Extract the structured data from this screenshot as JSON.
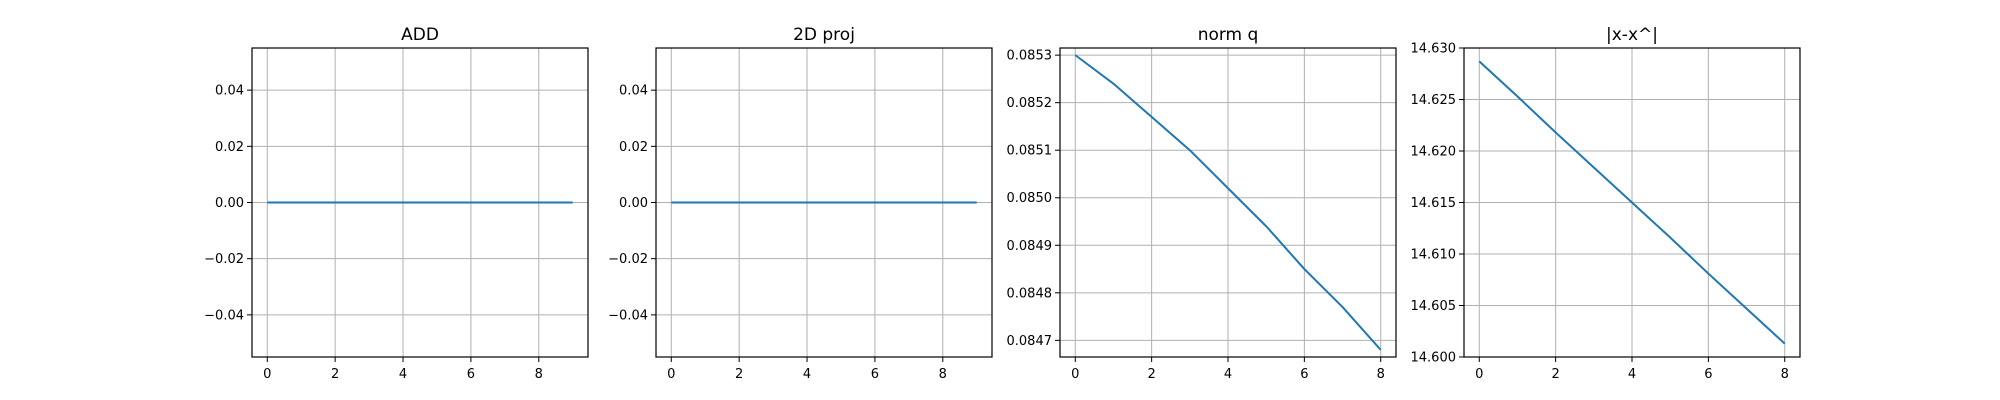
{
  "colors": {
    "series": "#1f77b4",
    "grid": "#b0b0b0",
    "axis": "#000000"
  },
  "chart_data": [
    {
      "type": "line",
      "title": "ADD",
      "xlabel": "",
      "ylabel": "",
      "x": [
        0,
        1,
        2,
        3,
        4,
        5,
        6,
        7,
        8,
        9
      ],
      "series": [
        {
          "values": [
            0,
            0,
            0,
            0,
            0,
            0,
            0,
            0,
            0,
            0
          ]
        }
      ],
      "xlim": [
        -0.45,
        9.45
      ],
      "ylim": [
        -0.055,
        0.055
      ],
      "xticks": [
        0,
        2,
        4,
        6,
        8
      ],
      "xtick_labels": [
        "0",
        "2",
        "4",
        "6",
        "8"
      ],
      "yticks": [
        0.04,
        0.02,
        0.0,
        -0.02,
        -0.04
      ],
      "ytick_labels": [
        "0.04",
        "0.02",
        "0.00",
        "−0.02",
        "−0.04"
      ],
      "grid": true
    },
    {
      "type": "line",
      "title": "2D proj",
      "xlabel": "",
      "ylabel": "",
      "x": [
        0,
        1,
        2,
        3,
        4,
        5,
        6,
        7,
        8,
        9
      ],
      "series": [
        {
          "values": [
            0,
            0,
            0,
            0,
            0,
            0,
            0,
            0,
            0,
            0
          ]
        }
      ],
      "xlim": [
        -0.45,
        9.45
      ],
      "ylim": [
        -0.055,
        0.055
      ],
      "xticks": [
        0,
        2,
        4,
        6,
        8
      ],
      "xtick_labels": [
        "0",
        "2",
        "4",
        "6",
        "8"
      ],
      "yticks": [
        0.04,
        0.02,
        0.0,
        -0.02,
        -0.04
      ],
      "ytick_labels": [
        "0.04",
        "0.02",
        "0.00",
        "−0.02",
        "−0.04"
      ],
      "grid": true
    },
    {
      "type": "line",
      "title": "norm q",
      "xlabel": "",
      "ylabel": "",
      "x": [
        0,
        1,
        2,
        3,
        4,
        5,
        6,
        7,
        8
      ],
      "series": [
        {
          "values": [
            0.0853,
            0.08524,
            0.08517,
            0.0851,
            0.08502,
            0.08494,
            0.08485,
            0.08477,
            0.08468
          ]
        }
      ],
      "xlim": [
        -0.4,
        8.4
      ],
      "ylim": [
        0.084665,
        0.085315
      ],
      "xticks": [
        0,
        2,
        4,
        6,
        8
      ],
      "xtick_labels": [
        "0",
        "2",
        "4",
        "6",
        "8"
      ],
      "yticks": [
        0.0853,
        0.0852,
        0.0851,
        0.085,
        0.0849,
        0.0848,
        0.0847
      ],
      "ytick_labels": [
        "0.0853",
        "0.0852",
        "0.0851",
        "0.0850",
        "0.0849",
        "0.0848",
        "0.0847"
      ],
      "grid": true
    },
    {
      "type": "line",
      "title": "|x-x^|",
      "xlabel": "",
      "ylabel": "",
      "x": [
        0,
        1,
        2,
        3,
        4,
        5,
        6,
        7,
        8
      ],
      "series": [
        {
          "values": [
            14.6287,
            14.6253,
            14.6218,
            14.6184,
            14.615,
            14.6116,
            14.6081,
            14.6047,
            14.6013
          ]
        }
      ],
      "xlim": [
        -0.4,
        8.4
      ],
      "ylim": [
        14.6,
        14.63
      ],
      "xticks": [
        0,
        2,
        4,
        6,
        8
      ],
      "xtick_labels": [
        "0",
        "2",
        "4",
        "6",
        "8"
      ],
      "yticks": [
        14.63,
        14.625,
        14.62,
        14.615,
        14.61,
        14.605,
        14.6
      ],
      "ytick_labels": [
        "14.630",
        "14.625",
        "14.620",
        "14.615",
        "14.610",
        "14.605",
        "14.600"
      ],
      "grid": true
    }
  ]
}
